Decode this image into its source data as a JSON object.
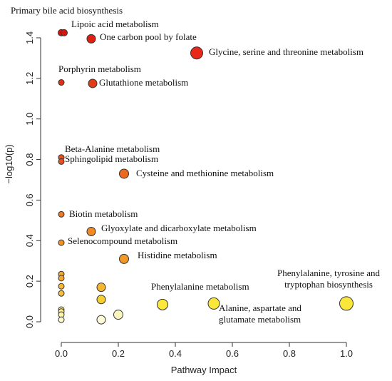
{
  "chart_data": {
    "type": "scatter",
    "title": "",
    "xlabel": "Pathway Impact",
    "ylabel": "−log10(p)",
    "xlim": [
      -0.02,
      1.05
    ],
    "ylim": [
      -0.02,
      1.48
    ],
    "x_ticks": [
      "0.0",
      "0.2",
      "0.4",
      "0.6",
      "0.8",
      "1.0"
    ],
    "y_ticks": [
      "0.0",
      "0.2",
      "0.4",
      "0.6",
      "0.8",
      "1.0",
      "1.2",
      "1.4"
    ],
    "grid": false,
    "legend": "none",
    "color_scale": {
      "low": "#ffffe0",
      "mid": "#f0a020",
      "high": "#e01010"
    },
    "points": [
      {
        "x": 0.0,
        "y": 1.425,
        "label": "Primary bile acid biosynthesis",
        "color": "#d41810",
        "size": 9
      },
      {
        "x": 0.01,
        "y": 1.425,
        "label": "Lipoic acid metabolism",
        "color": "#d41810",
        "size": 9
      },
      {
        "x": 0.105,
        "y": 1.395,
        "label": "One carbon pool by folate",
        "color": "#e02010",
        "size": 12
      },
      {
        "x": 0.475,
        "y": 1.325,
        "label": "Glycine, serine and threonine metabolism",
        "color": "#e82818",
        "size": 17
      },
      {
        "x": 0.0,
        "y": 1.18,
        "label": "Porphyrin metabolism",
        "color": "#e03018",
        "size": 8
      },
      {
        "x": 0.11,
        "y": 1.175,
        "label": "Glutathione metabolism",
        "color": "#e03c18",
        "size": 12
      },
      {
        "x": 0.0,
        "y": 0.81,
        "label": "Beta-Alanine metabolism",
        "color": "#e85020",
        "size": 8
      },
      {
        "x": 0.0,
        "y": 0.79,
        "label": "Sphingolipid metabolism",
        "color": "#e85020",
        "size": 8
      },
      {
        "x": 0.22,
        "y": 0.73,
        "label": "Cysteine and methionine metabolism",
        "color": "#ec6a20",
        "size": 13
      },
      {
        "x": 0.0,
        "y": 0.53,
        "label": "Biotin metabolism",
        "color": "#ee7a22",
        "size": 8
      },
      {
        "x": 0.105,
        "y": 0.445,
        "label": "Glyoxylate and dicarboxylate metabolism",
        "color": "#f08a22",
        "size": 12
      },
      {
        "x": 0.0,
        "y": 0.39,
        "label": "Selenocompound metabolism",
        "color": "#f29024",
        "size": 8
      },
      {
        "x": 0.22,
        "y": 0.31,
        "label": "Histidine metabolism",
        "color": "#f29828",
        "size": 13
      },
      {
        "x": 0.0,
        "y": 0.235,
        "label": "",
        "color": "#f4a830",
        "size": 8
      },
      {
        "x": 0.0,
        "y": 0.215,
        "label": "",
        "color": "#f4a830",
        "size": 8
      },
      {
        "x": 0.0,
        "y": 0.175,
        "label": "",
        "color": "#f6b834",
        "size": 8
      },
      {
        "x": 0.0,
        "y": 0.14,
        "label": "",
        "color": "#f6c038",
        "size": 8
      },
      {
        "x": 0.14,
        "y": 0.17,
        "label": "",
        "color": "#f4b830",
        "size": 12
      },
      {
        "x": 0.14,
        "y": 0.11,
        "label": "",
        "color": "#f6d030",
        "size": 12
      },
      {
        "x": 0.0,
        "y": 0.06,
        "label": "",
        "color": "#fbeb70",
        "size": 8
      },
      {
        "x": 0.0,
        "y": 0.05,
        "label": "",
        "color": "#fdf098",
        "size": 8
      },
      {
        "x": 0.0,
        "y": 0.035,
        "label": "",
        "color": "#fdf4a8",
        "size": 8
      },
      {
        "x": 0.0,
        "y": 0.01,
        "label": "",
        "color": "#fefad0",
        "size": 8
      },
      {
        "x": 0.14,
        "y": 0.01,
        "label": "",
        "color": "#fefad8",
        "size": 12
      },
      {
        "x": 0.2,
        "y": 0.035,
        "label": "",
        "color": "#fcf6c0",
        "size": 13
      },
      {
        "x": 0.355,
        "y": 0.085,
        "label": "Phenylalanine metabolism",
        "color": "#fbe83a",
        "size": 15
      },
      {
        "x": 0.535,
        "y": 0.09,
        "label": "Alanine, aspartate and glutamate metabolism",
        "color": "#fbe63a",
        "size": 16
      },
      {
        "x": 1.0,
        "y": 0.09,
        "label": "Phenylalanine, tyrosine and tryptophan biosynthesis",
        "color": "#fbe63a",
        "size": 19
      }
    ]
  }
}
